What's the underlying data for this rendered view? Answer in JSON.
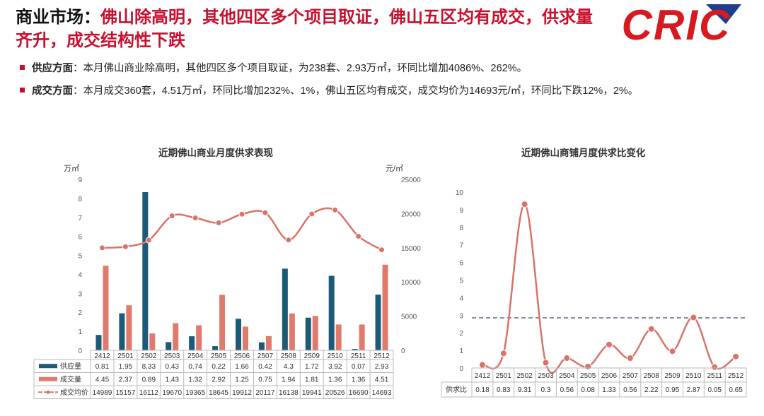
{
  "header": {
    "title_lead": "商业市场：",
    "title_rest": "佛山除高明，其他四区多个项目取证，佛山五区均有成交，供求量齐升，成交结构性下跌",
    "logo_text": "CRIC"
  },
  "bullets": [
    {
      "label": "供应方面",
      "text": "：本月佛山商业除高明，其他四区多个项目取证，为238套、2.93万㎡，环同比增加4086%、262%。"
    },
    {
      "label": "成交方面",
      "text": "：本月成交360套，4.51万㎡，环同比增加232%、1%，佛山五区均有成交，成交均价为14693元/㎡，环同比下跌12%，2%。"
    }
  ],
  "colors": {
    "supply": "#1c5a78",
    "deal": "#e07a6d",
    "price": "#d9736a",
    "accent": "#c8102e",
    "ratio": "#d9736a",
    "ref": "#5a6b80"
  },
  "chart_data": [
    {
      "type": "bar",
      "title": "近期佛山商业月度供求表现",
      "ylabel_left": "万㎡",
      "ylabel_right": "元/㎡",
      "categories": [
        "2412",
        "2501",
        "2502",
        "2503",
        "2504",
        "2505",
        "2506",
        "2507",
        "2508",
        "2509",
        "2510",
        "2511",
        "2512"
      ],
      "ylim_left": [
        0,
        9
      ],
      "yticks_left": [
        "0",
        "1",
        "2",
        "3",
        "4",
        "5",
        "6",
        "7",
        "8",
        "9"
      ],
      "ylim_right": [
        0,
        25000
      ],
      "yticks_right": [
        "0",
        "5000",
        "10000",
        "15000",
        "20000",
        "25000"
      ],
      "series": [
        {
          "name": "供应量",
          "type": "bar",
          "axis": "left",
          "values": [
            0.81,
            1.95,
            8.33,
            0.43,
            0.74,
            0.22,
            1.66,
            0.42,
            4.3,
            1.72,
            3.92,
            0.07,
            2.93
          ],
          "labels": [
            "0.81",
            "1.95",
            "8.33",
            "0.43",
            "0.74",
            "0.22",
            "1.66",
            "0.42",
            "4.3",
            "1.72",
            "3.92",
            "0.07",
            "2.93"
          ]
        },
        {
          "name": "成交量",
          "type": "bar",
          "axis": "left",
          "values": [
            4.45,
            2.37,
            0.89,
            1.43,
            1.32,
            2.92,
            1.25,
            0.75,
            1.94,
            1.81,
            1.36,
            1.36,
            4.51
          ],
          "labels": [
            "4.45",
            "2.37",
            "0.89",
            "1.43",
            "1.32",
            "2.92",
            "1.25",
            "0.75",
            "1.94",
            "1.81",
            "1.36",
            "1.36",
            "4.51"
          ]
        },
        {
          "name": "成交均价",
          "type": "line",
          "axis": "right",
          "values": [
            14989,
            15157,
            16112,
            19670,
            19365,
            18645,
            19912,
            20117,
            16138,
            19941,
            20526,
            16690,
            14693
          ],
          "labels": [
            "14989",
            "15157",
            "16112",
            "19670",
            "19365",
            "18645",
            "19912",
            "20117",
            "16138",
            "19941",
            "20526",
            "16690",
            "14693"
          ]
        }
      ]
    },
    {
      "type": "line",
      "title": "近期佛山商铺月度供求比变化",
      "categories": [
        "2412",
        "2501",
        "2502",
        "2503",
        "2504",
        "2505",
        "2506",
        "2507",
        "2508",
        "2509",
        "2510",
        "2511",
        "2512"
      ],
      "ylim": [
        0,
        10
      ],
      "yticks": [
        "0",
        "1",
        "2",
        "3",
        "4",
        "5",
        "6",
        "7",
        "8",
        "9",
        "10"
      ],
      "reference_line": 2.85,
      "series": [
        {
          "name": "供求比",
          "values": [
            0.18,
            0.83,
            9.31,
            0.3,
            0.56,
            0.08,
            1.33,
            0.56,
            2.22,
            0.95,
            2.87,
            0.05,
            0.65
          ],
          "labels": [
            "0.18",
            "0.83",
            "9.31",
            "0.3",
            "0.56",
            "0.08",
            "1.33",
            "0.56",
            "2.22",
            "0.95",
            "2.87",
            "0.05",
            "0.65"
          ]
        }
      ]
    }
  ]
}
